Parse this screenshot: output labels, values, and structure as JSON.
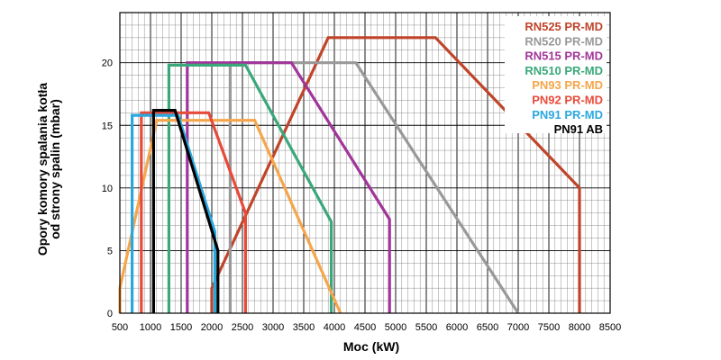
{
  "chart_data": {
    "type": "line",
    "title": "",
    "xlabel": "Moc (kW)",
    "ylabel_lines": [
      "Opory komory spalania kotła",
      "od strony spalin (mbar)"
    ],
    "xlim": [
      500,
      8500
    ],
    "ylim": [
      0,
      24
    ],
    "x_ticks": [
      500,
      1000,
      1500,
      2000,
      2500,
      3000,
      3500,
      4000,
      4500,
      5000,
      5500,
      6000,
      6500,
      7000,
      7500,
      8000,
      8500
    ],
    "y_ticks": [
      0,
      5,
      10,
      15,
      20
    ],
    "grid": true,
    "legend_position": "top-right",
    "series": [
      {
        "name": "RN525 PR-MD",
        "color": "#c0442a",
        "points": [
          [
            2000,
            0
          ],
          [
            2000,
            2
          ],
          [
            3900,
            22
          ],
          [
            5650,
            22
          ],
          [
            8000,
            10
          ],
          [
            8000,
            0
          ]
        ]
      },
      {
        "name": "RN520 PR-MD",
        "color": "#999999",
        "points": [
          [
            2300,
            0
          ],
          [
            2300,
            20
          ],
          [
            4350,
            20
          ],
          [
            7000,
            0
          ]
        ]
      },
      {
        "name": "RN515 PR-MD",
        "color": "#a0359a",
        "points": [
          [
            1600,
            0
          ],
          [
            1600,
            20
          ],
          [
            2300,
            20
          ],
          [
            3300,
            20
          ],
          [
            4900,
            7.5
          ],
          [
            4900,
            0
          ]
        ]
      },
      {
        "name": "RN510 PR-MD",
        "color": "#3aa87a",
        "points": [
          [
            1300,
            0
          ],
          [
            1300,
            19.8
          ],
          [
            2550,
            19.8
          ],
          [
            3950,
            7.3
          ],
          [
            3950,
            0
          ]
        ]
      },
      {
        "name": "PN93 PR-MD",
        "color": "#f5a64a",
        "points": [
          [
            500,
            0
          ],
          [
            500,
            2
          ],
          [
            1100,
            15.4
          ],
          [
            2700,
            15.4
          ],
          [
            4100,
            0
          ]
        ]
      },
      {
        "name": "PN92 PR-MD",
        "color": "#e84a3a",
        "points": [
          [
            850,
            0
          ],
          [
            850,
            16
          ],
          [
            1950,
            16
          ],
          [
            2550,
            8
          ],
          [
            2550,
            0
          ]
        ]
      },
      {
        "name": "PN91 PR-MD",
        "color": "#29a8e0",
        "points": [
          [
            700,
            0
          ],
          [
            700,
            15.8
          ],
          [
            1450,
            15.8
          ],
          [
            2050,
            6.5
          ],
          [
            2050,
            0
          ]
        ]
      },
      {
        "name": "PN91 AB",
        "color": "#000000",
        "points": [
          [
            1050,
            0
          ],
          [
            1050,
            16.2
          ],
          [
            1400,
            16.2
          ],
          [
            2100,
            5
          ],
          [
            2100,
            0
          ]
        ]
      }
    ]
  }
}
